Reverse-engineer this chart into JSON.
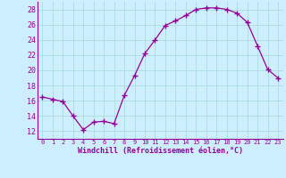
{
  "x": [
    0,
    1,
    2,
    3,
    4,
    5,
    6,
    7,
    8,
    9,
    10,
    11,
    12,
    13,
    14,
    15,
    16,
    17,
    18,
    19,
    20,
    21,
    22,
    23
  ],
  "y": [
    16.5,
    16.2,
    15.9,
    14.0,
    12.2,
    13.2,
    13.3,
    13.0,
    16.7,
    19.3,
    22.2,
    24.0,
    25.9,
    26.5,
    27.2,
    28.0,
    28.2,
    28.2,
    28.0,
    27.5,
    26.3,
    23.2,
    20.1,
    19.0
  ],
  "line_color": "#990099",
  "marker": "+",
  "marker_size": 4,
  "bg_color": "#cceeff",
  "grid_color": "#aadddd",
  "xlabel": "Windchill (Refroidissement éolien,°C)",
  "xlabel_color": "#990099",
  "tick_color": "#990099",
  "ylim": [
    11,
    29
  ],
  "xlim": [
    -0.5,
    23.5
  ],
  "yticks": [
    12,
    14,
    16,
    18,
    20,
    22,
    24,
    26,
    28
  ],
  "xticks": [
    0,
    1,
    2,
    3,
    4,
    5,
    6,
    7,
    8,
    9,
    10,
    11,
    12,
    13,
    14,
    15,
    16,
    17,
    18,
    19,
    20,
    21,
    22,
    23
  ],
  "xtick_labels": [
    "0",
    "1",
    "2",
    "3",
    "4",
    "5",
    "6",
    "7",
    "8",
    "9",
    "10",
    "11",
    "12",
    "13",
    "14",
    "15",
    "16",
    "17",
    "18",
    "19",
    "20",
    "21",
    "22",
    "23"
  ],
  "spine_color": "#666688",
  "spine_bottom_color": "#990099",
  "xlabel_fontsize": 6.0,
  "ytick_fontsize": 6.0,
  "xtick_fontsize": 5.0
}
